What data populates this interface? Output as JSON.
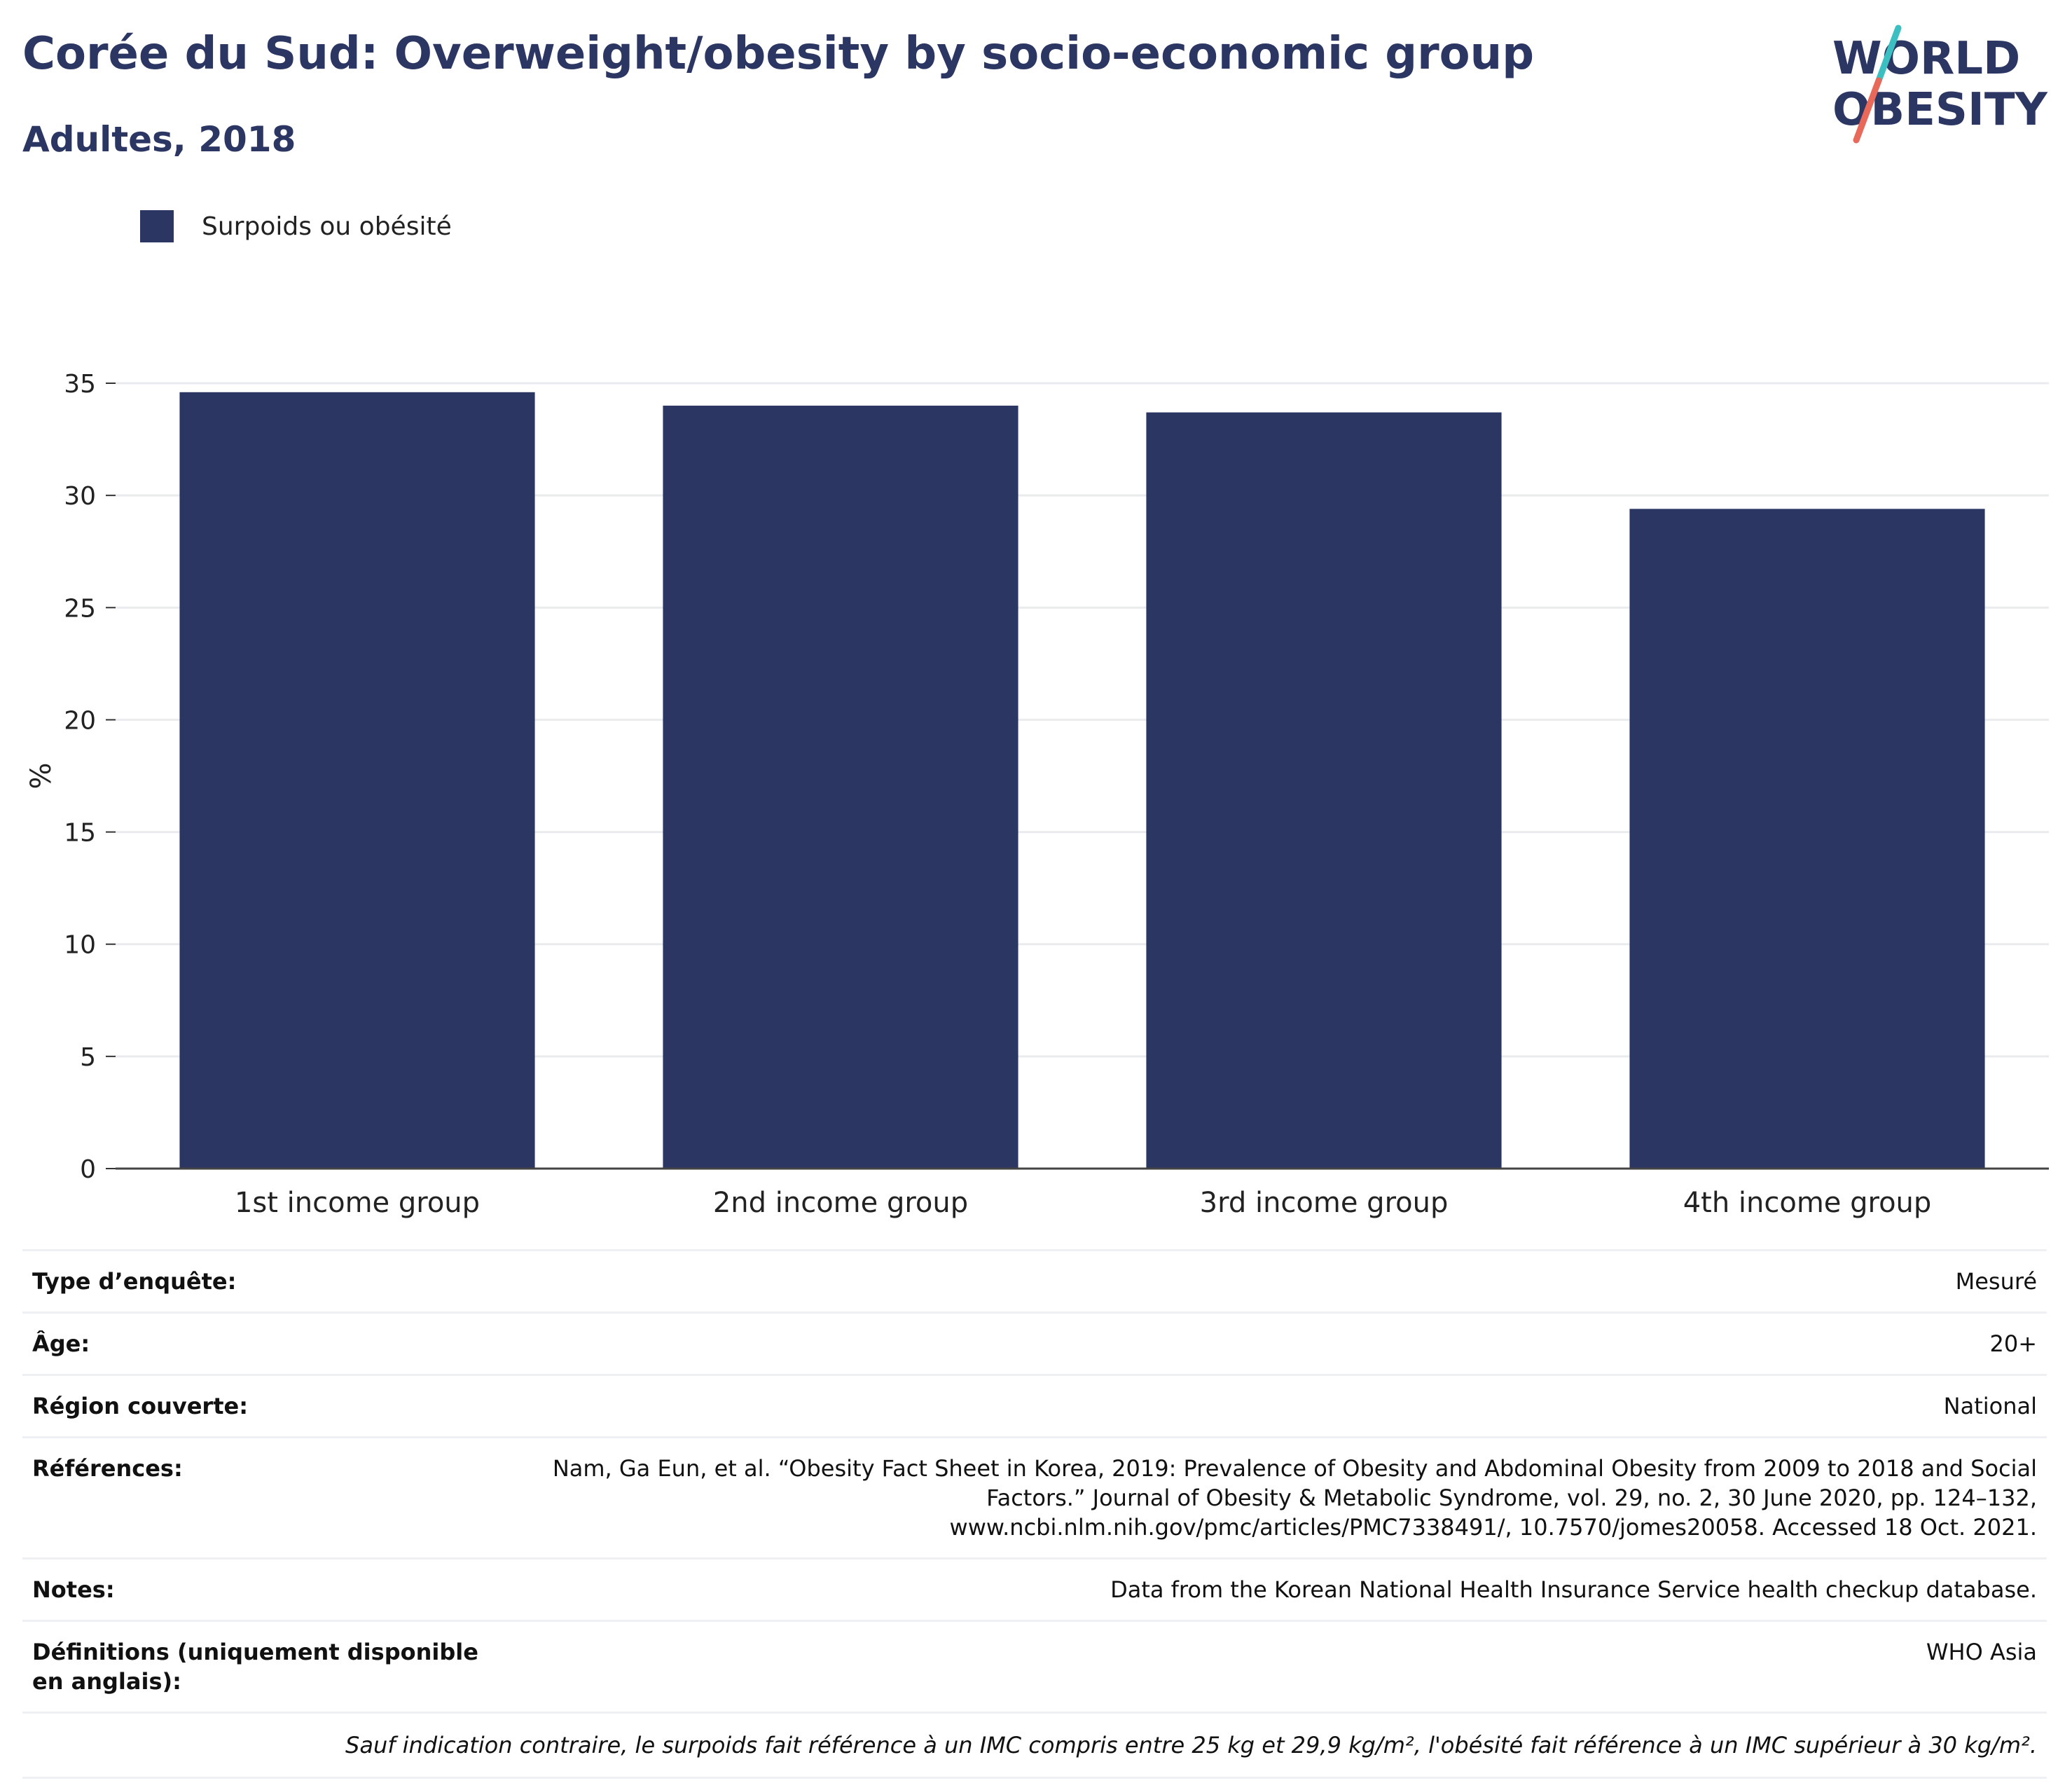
{
  "header": {
    "title": "Corée du Sud: Overweight/obesity by socio-economic group",
    "subtitle": "Adultes, 2018"
  },
  "logo": {
    "line1": "WORLD",
    "line2": "OBESITY",
    "colors": {
      "navy": "#2b3663",
      "teal": "#3bbfc1",
      "coral": "#e8685a"
    }
  },
  "legend": {
    "label": "Surpoids ou obésité",
    "color": "#2b3663"
  },
  "chart_data": {
    "type": "bar",
    "categories": [
      "1st income group",
      "2nd income group",
      "3rd income group",
      "4th income group"
    ],
    "series": [
      {
        "name": "Surpoids ou obésité",
        "values": [
          34.6,
          34.0,
          33.7,
          29.4
        ],
        "color": "#2b3663"
      }
    ],
    "ylabel": "%",
    "ylim": [
      0,
      35
    ],
    "yticks": [
      0,
      5,
      10,
      15,
      20,
      25,
      30,
      35
    ],
    "grid": true,
    "legend_position": "top-left"
  },
  "meta": {
    "rows": [
      {
        "key": "Type d’enquête:",
        "value": "Mesuré"
      },
      {
        "key": "Âge:",
        "value": "20+"
      },
      {
        "key": "Région couverte:",
        "value": "National"
      },
      {
        "key": "Références:",
        "value": "Nam, Ga Eun, et al. “Obesity Fact Sheet in Korea, 2019: Prevalence of Obesity and Abdominal Obesity from 2009 to 2018 and Social Factors.” Journal of Obesity & Metabolic Syndrome, vol. 29, no. 2, 30 June 2020, pp. 124–132, www.ncbi.nlm.nih.gov/pmc/articles/PMC7338491/, 10.7570/jomes20058. Accessed 18 Oct. 2021."
      },
      {
        "key": "Notes:",
        "value": "Data from the Korean National Health Insurance Service health checkup database."
      },
      {
        "key": "Définitions (uniquement disponible en anglais):",
        "value": "WHO Asia"
      }
    ],
    "footnote": "Sauf indication contraire, le surpoids fait référence à un IMC compris entre 25 kg et 29,9 kg/m², l'obésité fait référence à un IMC supérieur à 30 kg/m²."
  }
}
